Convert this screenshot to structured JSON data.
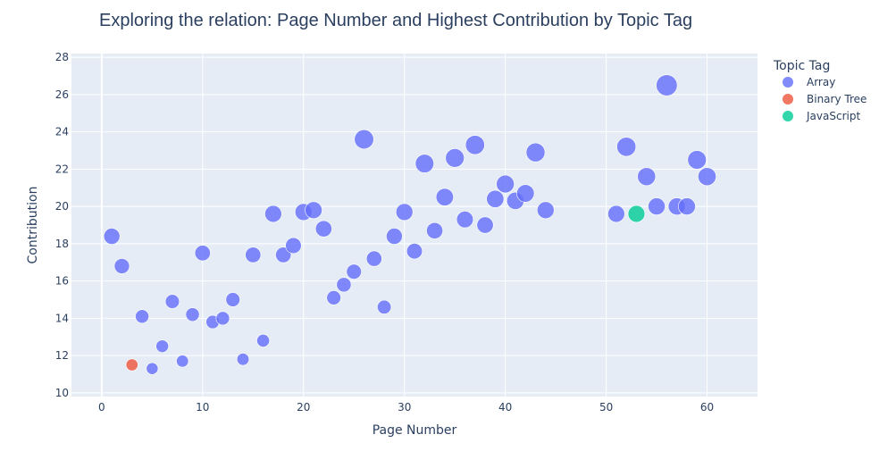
{
  "chart_data": {
    "type": "scatter",
    "title": "Exploring the relation: Page Number and Highest Contribution by Topic Tag",
    "xlabel": "Page Number",
    "ylabel": "Contribution",
    "xlim": [
      -3,
      65
    ],
    "ylim": [
      9.8,
      28.2
    ],
    "xticks": [
      0,
      10,
      20,
      30,
      40,
      50,
      60
    ],
    "yticks": [
      10,
      12,
      14,
      16,
      18,
      20,
      22,
      24,
      26,
      28
    ],
    "grid": true,
    "legend": {
      "title": "Topic Tag",
      "placement": "right"
    },
    "series": [
      {
        "name": "Array",
        "color": "#636efa",
        "points": [
          {
            "x": 1,
            "y": 18.4
          },
          {
            "x": 2,
            "y": 16.8
          },
          {
            "x": 4,
            "y": 14.1
          },
          {
            "x": 5,
            "y": 11.3
          },
          {
            "x": 6,
            "y": 12.5
          },
          {
            "x": 7,
            "y": 14.9
          },
          {
            "x": 8,
            "y": 11.7
          },
          {
            "x": 9,
            "y": 14.2
          },
          {
            "x": 10,
            "y": 17.5
          },
          {
            "x": 11,
            "y": 13.8
          },
          {
            "x": 12,
            "y": 14.0
          },
          {
            "x": 13,
            "y": 15.0
          },
          {
            "x": 14,
            "y": 11.8
          },
          {
            "x": 15,
            "y": 17.4
          },
          {
            "x": 16,
            "y": 12.8
          },
          {
            "x": 17,
            "y": 19.6
          },
          {
            "x": 18,
            "y": 17.4
          },
          {
            "x": 19,
            "y": 17.9
          },
          {
            "x": 20,
            "y": 19.7
          },
          {
            "x": 21,
            "y": 19.8
          },
          {
            "x": 22,
            "y": 18.8
          },
          {
            "x": 23,
            "y": 15.1
          },
          {
            "x": 24,
            "y": 15.8
          },
          {
            "x": 25,
            "y": 16.5
          },
          {
            "x": 26,
            "y": 23.6
          },
          {
            "x": 27,
            "y": 17.2
          },
          {
            "x": 28,
            "y": 14.6
          },
          {
            "x": 29,
            "y": 18.4
          },
          {
            "x": 30,
            "y": 19.7
          },
          {
            "x": 31,
            "y": 17.6
          },
          {
            "x": 32,
            "y": 22.3
          },
          {
            "x": 33,
            "y": 18.7
          },
          {
            "x": 34,
            "y": 20.5
          },
          {
            "x": 35,
            "y": 22.6
          },
          {
            "x": 36,
            "y": 19.3
          },
          {
            "x": 37,
            "y": 23.3
          },
          {
            "x": 38,
            "y": 19.0
          },
          {
            "x": 39,
            "y": 20.4
          },
          {
            "x": 40,
            "y": 21.2
          },
          {
            "x": 41,
            "y": 20.3
          },
          {
            "x": 42,
            "y": 20.7
          },
          {
            "x": 43,
            "y": 22.9
          },
          {
            "x": 44,
            "y": 19.8
          },
          {
            "x": 51,
            "y": 19.6
          },
          {
            "x": 52,
            "y": 23.2
          },
          {
            "x": 54,
            "y": 21.6
          },
          {
            "x": 55,
            "y": 20.0
          },
          {
            "x": 56,
            "y": 26.5
          },
          {
            "x": 57,
            "y": 20.0
          },
          {
            "x": 58,
            "y": 20.0
          },
          {
            "x": 59,
            "y": 22.5
          },
          {
            "x": 60,
            "y": 21.6
          }
        ]
      },
      {
        "name": "Binary Tree",
        "color": "#ef553b",
        "points": [
          {
            "x": 3,
            "y": 11.5
          }
        ]
      },
      {
        "name": "JavaScript",
        "color": "#00cc96",
        "points": [
          {
            "x": 53,
            "y": 19.6
          }
        ]
      }
    ]
  }
}
